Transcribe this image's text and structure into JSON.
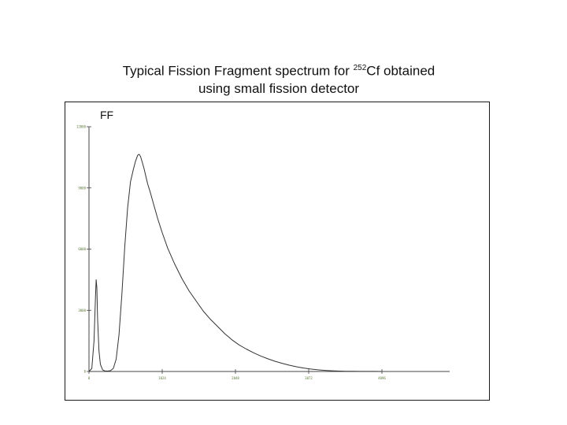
{
  "title": {
    "prefix": "Typical Fission Fragment spectrum for ",
    "superscript": "252",
    "suffix": "Cf obtained",
    "line2": "using small fission detector"
  },
  "corner_label": "FF",
  "colors": {
    "axis": "#444444",
    "curve": "#333333",
    "frame": "#1a1a1a",
    "tick_labels": "#5a7a3a"
  },
  "chart_data": {
    "type": "line",
    "title": "",
    "xlabel": "",
    "ylabel": "",
    "xlim": [
      0,
      4096
    ],
    "ylim": [
      0,
      12000
    ],
    "xticks": [
      0,
      1024,
      2048,
      3072,
      4096
    ],
    "xtick_labels": [
      "0",
      "1024",
      "2048",
      "3072",
      "4096"
    ],
    "yticks": [
      0,
      3000,
      6000,
      9000,
      12000
    ],
    "ytick_labels": [
      "0",
      "3000",
      "6000",
      "9000",
      "12000"
    ],
    "grid": false,
    "series": [
      {
        "x": [
          0,
          40,
          70,
          90,
          100,
          110,
          120,
          140,
          160,
          190,
          220,
          260,
          300,
          340,
          380,
          420,
          460,
          500,
          540,
          580,
          620,
          650,
          680,
          700,
          720,
          745,
          770,
          790,
          820,
          860,
          900,
          960,
          1020,
          1100,
          1200,
          1300,
          1400,
          1500,
          1600,
          1700,
          1800,
          1900,
          2000,
          2100,
          2200,
          2300,
          2400,
          2500,
          2600,
          2700,
          2800,
          2900,
          3000,
          3100,
          3200,
          3300,
          3400,
          3500,
          3600,
          3700,
          3800,
          3900,
          4000,
          4096
        ],
        "y": [
          0,
          150,
          1500,
          3600,
          4500,
          4100,
          2600,
          1000,
          350,
          80,
          30,
          20,
          40,
          150,
          600,
          1800,
          3800,
          6100,
          8000,
          9300,
          9900,
          10300,
          10600,
          10650,
          10550,
          10250,
          9950,
          9650,
          9200,
          8750,
          8250,
          7500,
          6850,
          6050,
          5250,
          4550,
          3950,
          3450,
          2950,
          2550,
          2200,
          1850,
          1550,
          1300,
          1100,
          920,
          760,
          620,
          500,
          400,
          310,
          230,
          170,
          120,
          80,
          55,
          35,
          20,
          12,
          8,
          5,
          3,
          2,
          1
        ]
      }
    ]
  }
}
